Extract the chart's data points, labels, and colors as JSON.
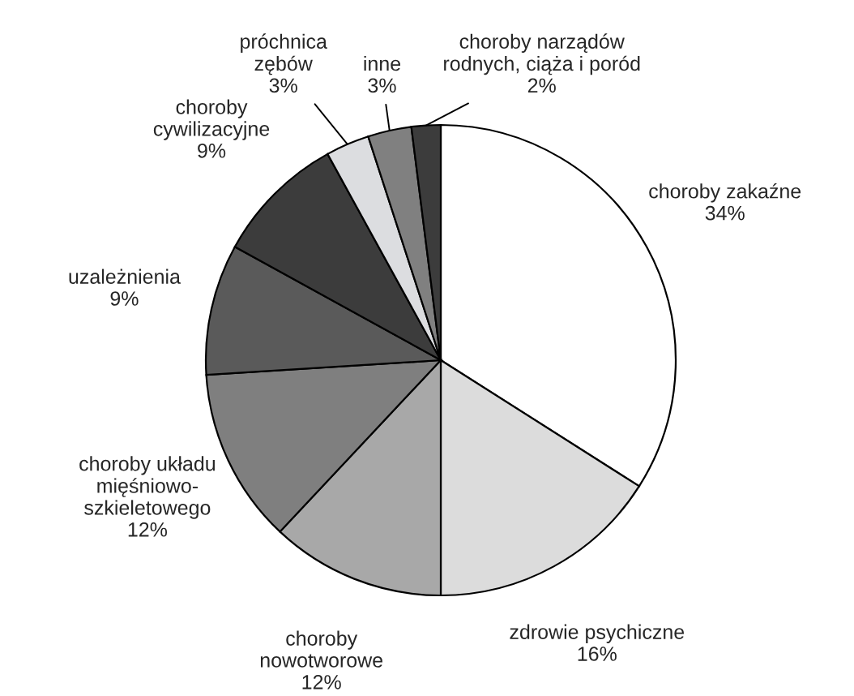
{
  "chart_data": {
    "type": "pie",
    "categories": [
      "choroby zakaźne",
      "zdrowie psychiczne",
      "choroby\nnowotworowe",
      "choroby układu\nmięśniowo-\nszkieletowego",
      "uzależnienia",
      "choroby\ncywilizacyjne",
      "próchnica\nzębów",
      "inne",
      "choroby narządów\nrodnych, ciąża i poród"
    ],
    "values": [
      34,
      16,
      12,
      12,
      9,
      9,
      3,
      3,
      2
    ],
    "value_labels": [
      "34%",
      "16%",
      "12%",
      "12%",
      "9%",
      "9%",
      "3%",
      "3%",
      "2%"
    ],
    "colors": [
      "#ffffff",
      "#dcdcdc",
      "#a8a8a8",
      "#7f7f7f",
      "#5a5a5a",
      "#3c3c3c",
      "#dcdde0",
      "#808080",
      "#3c3c3c"
    ]
  }
}
